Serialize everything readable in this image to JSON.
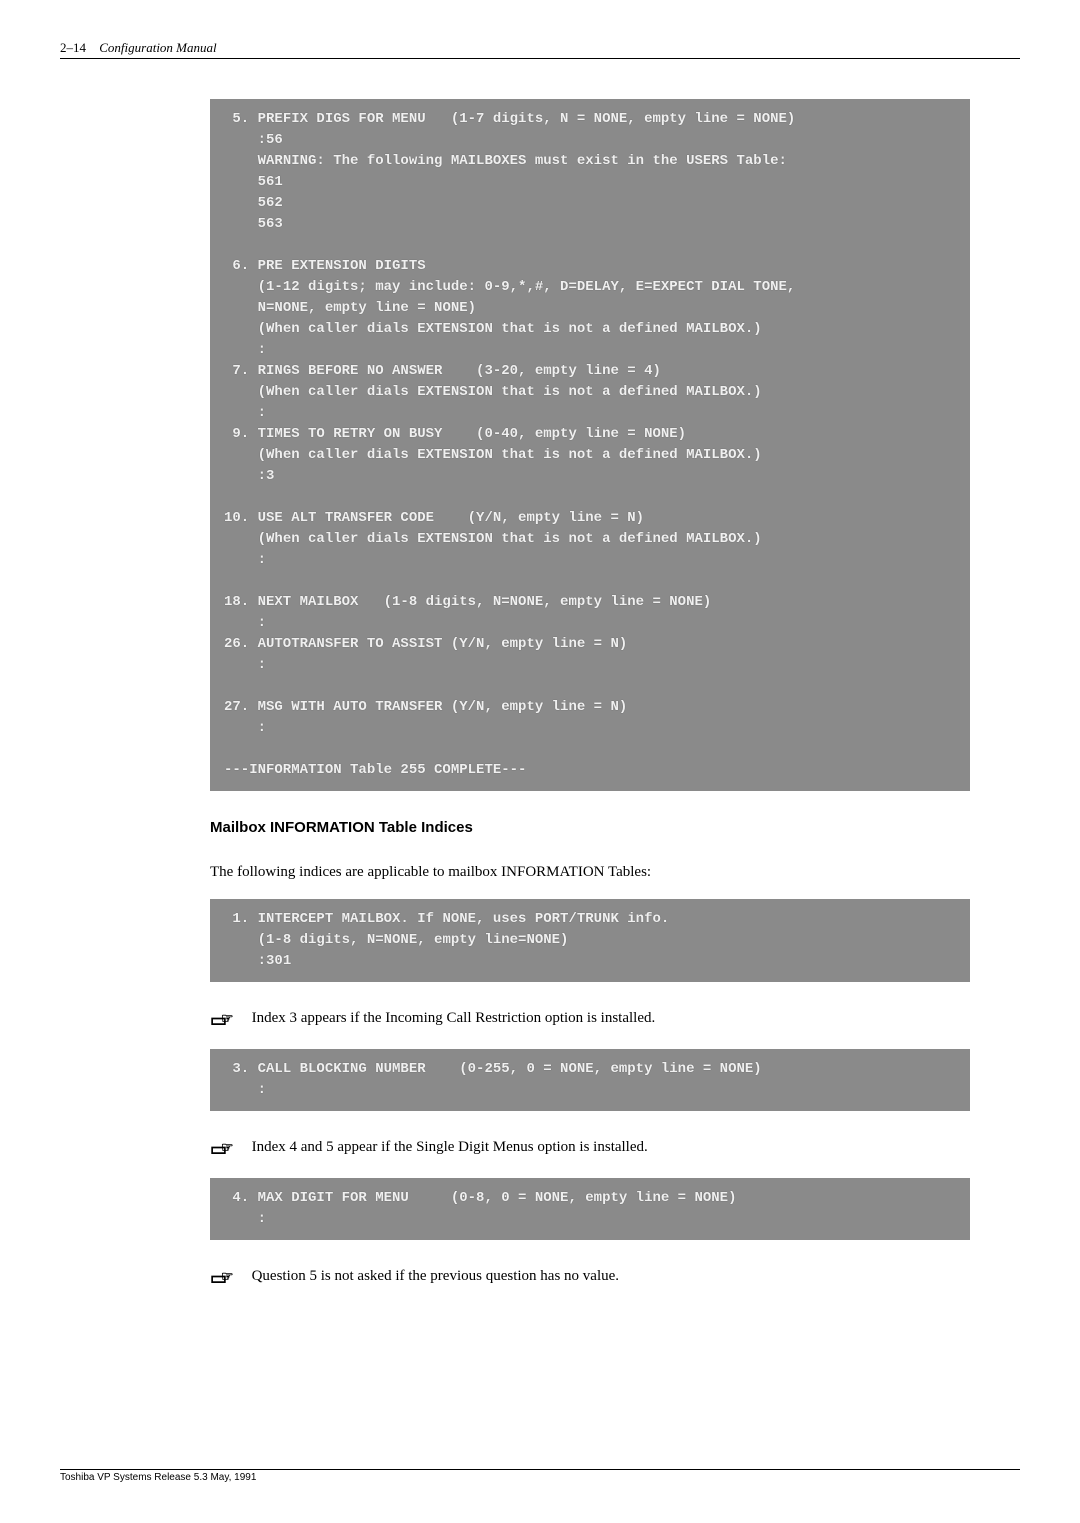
{
  "header": {
    "page_ref": "2–14",
    "manual_title": "Configuration Manual"
  },
  "terminal1": " 5. PREFIX DIGS FOR MENU   (1-7 digits, N = NONE, empty line = NONE)\n    :56\n    WARNING: The following MAILBOXES must exist in the USERS Table:\n    561\n    562\n    563\n\n 6. PRE EXTENSION DIGITS\n    (1-12 digits; may include: 0-9,*,#, D=DELAY, E=EXPECT DIAL TONE,\n    N=NONE, empty line = NONE)\n    (When caller dials EXTENSION that is not a defined MAILBOX.)\n    :\n 7. RINGS BEFORE NO ANSWER    (3-20, empty line = 4)\n    (When caller dials EXTENSION that is not a defined MAILBOX.)\n    :\n 9. TIMES TO RETRY ON BUSY    (0-40, empty line = NONE)\n    (When caller dials EXTENSION that is not a defined MAILBOX.)\n    :3\n\n10. USE ALT TRANSFER CODE    (Y/N, empty line = N)\n    (When caller dials EXTENSION that is not a defined MAILBOX.)\n    :\n\n18. NEXT MAILBOX   (1-8 digits, N=NONE, empty line = NONE)\n    :\n26. AUTOTRANSFER TO ASSIST (Y/N, empty line = N)\n    :\n\n27. MSG WITH AUTO TRANSFER (Y/N, empty line = N)\n    :\n\n---INFORMATION Table 255 COMPLETE---",
  "section_title": "Mailbox INFORMATION Table Indices",
  "intro_text": "The following indices are applicable to mailbox INFORMATION Tables:",
  "terminal2": " 1. INTERCEPT MAILBOX. If NONE, uses PORT/TRUNK info.\n    (1-8 digits, N=NONE, empty line=NONE)\n    :301",
  "note1": "Index 3 appears if the Incoming Call Restriction option is installed.",
  "terminal3": " 3. CALL BLOCKING NUMBER    (0-255, 0 = NONE, empty line = NONE)\n    :",
  "note2": "Index 4 and 5 appear if the Single Digit Menus option is installed.",
  "terminal4": " 4. MAX DIGIT FOR MENU     (0-8, 0 = NONE, empty line = NONE)\n    :",
  "note3": "Question 5 is not asked if the previous question has no value.",
  "footer": "Toshiba VP Systems    Release 5.3    May, 1991"
}
